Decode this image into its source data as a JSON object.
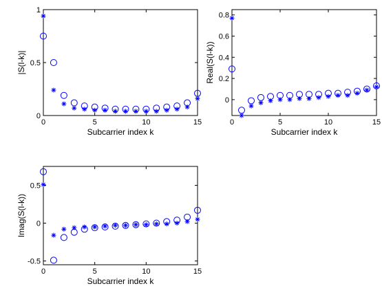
{
  "colors": {
    "marker": "#0000ff",
    "axes": "#000000",
    "background": "#ffffff"
  },
  "chart_data": [
    {
      "type": "scatter",
      "xlabel": "Subcarrier index k",
      "ylabel": "|S(l-k)|",
      "xlim": [
        0,
        15
      ],
      "ylim": [
        0,
        1
      ],
      "xticks": [
        0,
        5,
        10,
        15
      ],
      "yticks": [
        0,
        0.5,
        1
      ],
      "grid": false,
      "series": [
        {
          "marker": "circle",
          "x": [
            0,
            1,
            2,
            3,
            4,
            5,
            6,
            7,
            8,
            9,
            10,
            11,
            12,
            13,
            14,
            15
          ],
          "values": [
            0.75,
            0.5,
            0.19,
            0.12,
            0.09,
            0.08,
            0.07,
            0.06,
            0.06,
            0.06,
            0.06,
            0.07,
            0.08,
            0.09,
            0.12,
            0.21
          ]
        },
        {
          "marker": "asterisk",
          "x": [
            0,
            1,
            2,
            3,
            4,
            5,
            6,
            7,
            8,
            9,
            10,
            11,
            12,
            13,
            14,
            15
          ],
          "values": [
            0.94,
            0.24,
            0.11,
            0.07,
            0.06,
            0.05,
            0.05,
            0.04,
            0.04,
            0.04,
            0.04,
            0.04,
            0.05,
            0.06,
            0.08,
            0.16
          ]
        }
      ]
    },
    {
      "type": "scatter",
      "xlabel": "Subcarrier index k",
      "ylabel": "Real(S(l-k))",
      "xlim": [
        0,
        15
      ],
      "ylim": [
        -0.15,
        0.85
      ],
      "xticks": [
        0,
        5,
        10,
        15
      ],
      "yticks": [
        0,
        0.2,
        0.4,
        0.6,
        0.8
      ],
      "grid": false,
      "series": [
        {
          "marker": "circle",
          "x": [
            0,
            1,
            2,
            3,
            4,
            5,
            6,
            7,
            8,
            9,
            10,
            11,
            12,
            13,
            14,
            15
          ],
          "values": [
            0.29,
            -0.1,
            -0.01,
            0.02,
            0.03,
            0.04,
            0.04,
            0.05,
            0.05,
            0.05,
            0.06,
            0.06,
            0.07,
            0.08,
            0.1,
            0.13
          ]
        },
        {
          "marker": "asterisk",
          "x": [
            0,
            1,
            2,
            3,
            4,
            5,
            6,
            7,
            8,
            9,
            10,
            11,
            12,
            13,
            14,
            15
          ],
          "values": [
            0.77,
            -0.15,
            -0.06,
            -0.03,
            -0.01,
            0.0,
            0.0,
            0.01,
            0.01,
            0.02,
            0.03,
            0.04,
            0.04,
            0.06,
            0.09,
            0.12
          ]
        }
      ]
    },
    {
      "type": "scatter",
      "xlabel": "Subcarrier index k",
      "ylabel": "Imag(S(l-k))",
      "xlim": [
        0,
        15
      ],
      "ylim": [
        -0.55,
        0.75
      ],
      "xticks": [
        0,
        5,
        10,
        15
      ],
      "yticks": [
        -0.5,
        0,
        0.5
      ],
      "grid": false,
      "series": [
        {
          "marker": "circle",
          "x": [
            0,
            1,
            2,
            3,
            4,
            5,
            6,
            7,
            8,
            9,
            10,
            11,
            12,
            13,
            14,
            15
          ],
          "values": [
            0.68,
            -0.49,
            -0.19,
            -0.12,
            -0.08,
            -0.06,
            -0.05,
            -0.04,
            -0.03,
            -0.02,
            -0.01,
            0.0,
            0.02,
            0.04,
            0.08,
            0.17
          ]
        },
        {
          "marker": "asterisk",
          "x": [
            0,
            1,
            2,
            3,
            4,
            5,
            6,
            7,
            8,
            9,
            10,
            11,
            12,
            13,
            14,
            15
          ],
          "values": [
            0.51,
            -0.16,
            -0.08,
            -0.06,
            -0.05,
            -0.05,
            -0.04,
            -0.03,
            -0.03,
            -0.02,
            -0.02,
            -0.01,
            -0.01,
            0.0,
            0.02,
            0.05
          ]
        }
      ]
    }
  ]
}
